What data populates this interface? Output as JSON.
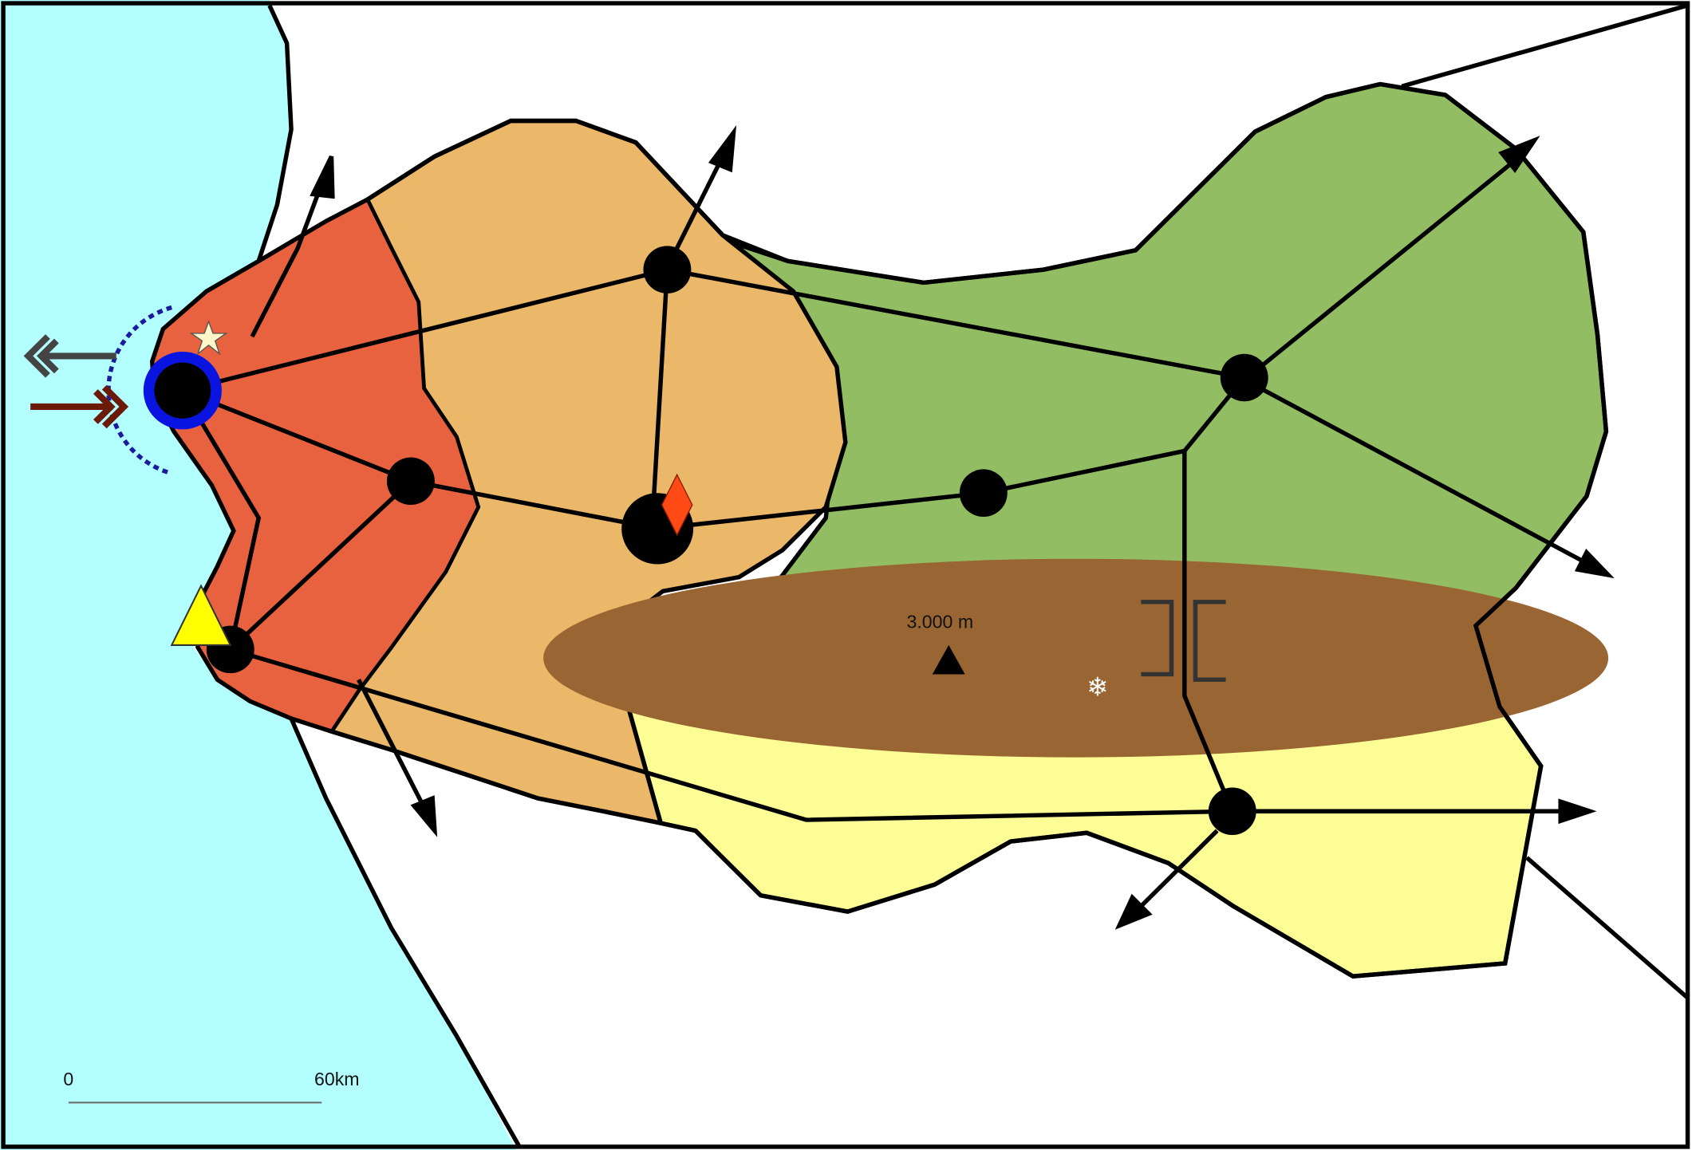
{
  "map": {
    "elevation_label": "3.000 m",
    "scale_bar": {
      "start_label": "0",
      "end_label": "60km"
    },
    "colors": {
      "sea": "#b3ffff",
      "red_zone": "#e9623f",
      "orange_zone": "#eab868",
      "green_zone": "#93bd62",
      "yellow_zone": "#fdfd96",
      "mountain": "#986533",
      "port_ring": "#0a14e0",
      "arrow_out": "#444444",
      "arrow_in": "#6b1a0a",
      "triangle": "#ffff00",
      "diamond": "#ff4a16",
      "star": "#fff7c8"
    },
    "icons": [
      "star-icon",
      "triangle-icon",
      "diamond-icon",
      "snowflake-icon",
      "mountain-peak-icon",
      "pass-bracket-icon",
      "double-arrow-out-icon",
      "double-arrow-in-icon"
    ]
  }
}
